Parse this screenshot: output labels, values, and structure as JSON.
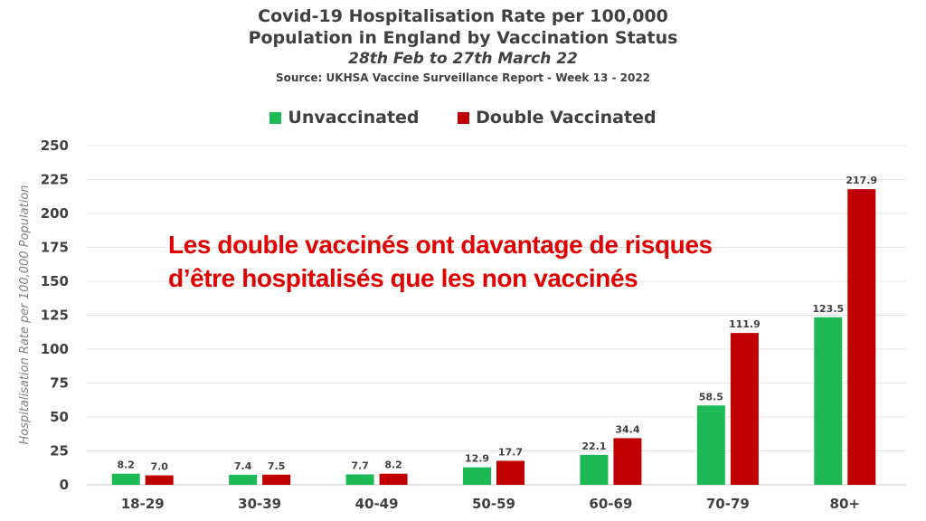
{
  "chart_data": {
    "type": "bar",
    "title": "Covid-19 Hospitalisation Rate per 100,000",
    "title_line2": "Population in England by Vaccination Status",
    "subtitle": "28th Feb to 27th March 22",
    "source": "Source: UKHSA Vaccine Surveillance Report - Week 13 - 2022",
    "ylabel": "Hospitalisation Rate per 100,000 Population",
    "xlabel": "",
    "ylim": [
      0,
      250
    ],
    "yticks": [
      0,
      25,
      50,
      75,
      100,
      125,
      150,
      175,
      200,
      225,
      250
    ],
    "grid": true,
    "legend_position": "top-center",
    "categories": [
      "18-29",
      "30-39",
      "40-49",
      "50-59",
      "60-69",
      "70-79",
      "80+"
    ],
    "series": [
      {
        "name": "Unvaccinated",
        "color": "#1db954",
        "values": [
          8.2,
          7.4,
          7.7,
          12.9,
          22.1,
          58.5,
          123.5
        ],
        "labels": [
          "8.2",
          "7.4",
          "7.7",
          "12.9",
          "22.1",
          "58.5",
          "123.5"
        ]
      },
      {
        "name": "Double Vaccinated",
        "color": "#c00000",
        "values": [
          7.0,
          7.5,
          8.2,
          17.7,
          34.4,
          111.9,
          217.9
        ],
        "labels": [
          "7.0",
          "7.5",
          "8.2",
          "17.7",
          "34.4",
          "111.9",
          "217.9"
        ]
      }
    ]
  },
  "annotation": {
    "line1": "Les double vaccinés ont davantage de risques",
    "line2": "d’être hospitalisés que les non vaccinés"
  }
}
